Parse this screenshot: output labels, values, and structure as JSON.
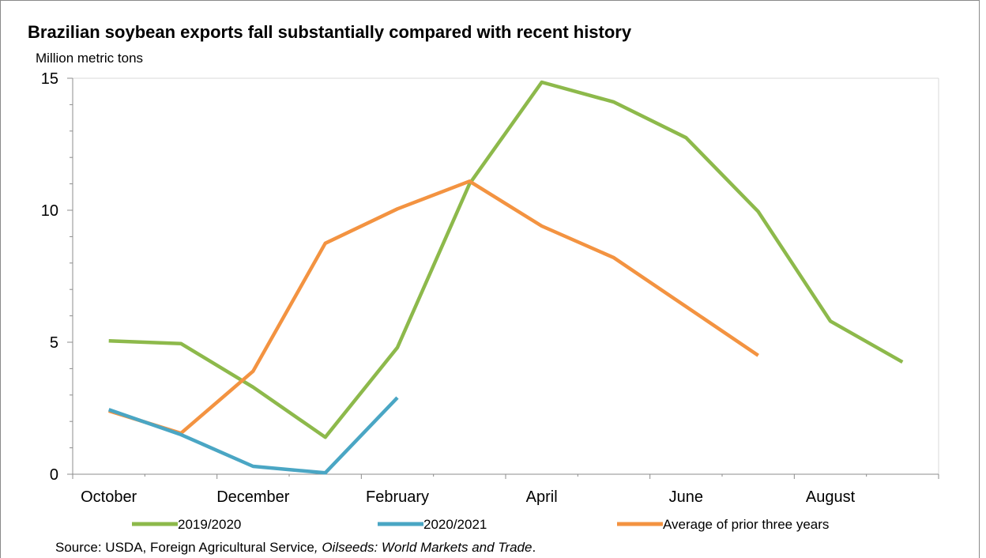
{
  "chart_data": {
    "type": "line",
    "title": "Brazilian soybean exports fall substantially compared with recent history",
    "ylabel": "Million metric tons",
    "xlabel": "",
    "ylim": [
      0,
      15
    ],
    "yticks": [
      0,
      5,
      10,
      15
    ],
    "months": [
      "October",
      "November",
      "December",
      "January",
      "February",
      "March",
      "April",
      "May",
      "June",
      "July",
      "August",
      "September"
    ],
    "x_tick_labels": [
      "October",
      "December",
      "February",
      "April",
      "June",
      "August"
    ],
    "grid": "horizontal-none",
    "legend_position": "bottom",
    "series": [
      {
        "name": "2019/2020",
        "color": "#8db94b",
        "values": [
          5.05,
          4.95,
          3.3,
          1.4,
          4.8,
          11.0,
          14.85,
          14.1,
          12.75,
          9.95,
          5.8,
          4.25
        ]
      },
      {
        "name": "2020/2021",
        "color": "#4aa6c4",
        "values": [
          2.45,
          1.5,
          0.3,
          0.05,
          2.9
        ]
      },
      {
        "name": "Average of prior three years",
        "color": "#f39341",
        "values": [
          2.4,
          1.55,
          3.9,
          8.75,
          10.05,
          11.1,
          9.4,
          8.2,
          6.35,
          4.5
        ]
      }
    ]
  },
  "source": {
    "prefix": "Source: USDA, Foreign Agricultural Service",
    "comma": ", ",
    "publication": "Oilseeds: World Markets and Trade",
    "suffix": "."
  }
}
